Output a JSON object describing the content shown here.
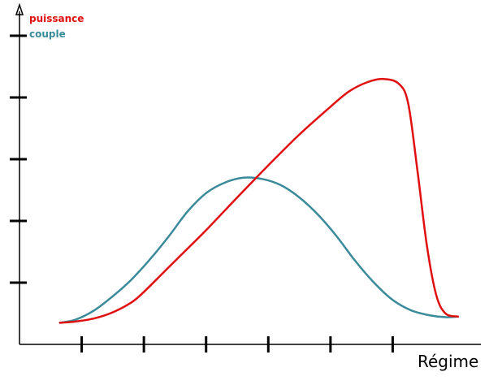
{
  "chart_data": {
    "type": "line",
    "title": "",
    "xlabel": "Régime",
    "ylabel": "",
    "xlim": [
      0,
      7
    ],
    "ylim": [
      0,
      5
    ],
    "x_ticks": [
      1,
      2,
      3,
      4,
      5,
      6
    ],
    "y_ticks": [
      1,
      2,
      3,
      4,
      5
    ],
    "tick_labels_shown": false,
    "grid": false,
    "legend_position": "top-left",
    "series": [
      {
        "name": "puissance",
        "color": "#e01010",
        "points": [
          {
            "x": 0.65,
            "y": 0.35
          },
          {
            "x": 0.9,
            "y": 0.37
          },
          {
            "x": 1.2,
            "y": 0.42
          },
          {
            "x": 1.5,
            "y": 0.52
          },
          {
            "x": 1.8,
            "y": 0.68
          },
          {
            "x": 2.0,
            "y": 0.85
          },
          {
            "x": 2.3,
            "y": 1.15
          },
          {
            "x": 2.6,
            "y": 1.45
          },
          {
            "x": 3.0,
            "y": 1.85
          },
          {
            "x": 3.5,
            "y": 2.38
          },
          {
            "x": 4.0,
            "y": 2.9
          },
          {
            "x": 4.5,
            "y": 3.4
          },
          {
            "x": 5.0,
            "y": 3.85
          },
          {
            "x": 5.3,
            "y": 4.1
          },
          {
            "x": 5.6,
            "y": 4.25
          },
          {
            "x": 5.85,
            "y": 4.3
          },
          {
            "x": 6.1,
            "y": 4.22
          },
          {
            "x": 6.25,
            "y": 3.9
          },
          {
            "x": 6.4,
            "y": 2.8
          },
          {
            "x": 6.55,
            "y": 1.6
          },
          {
            "x": 6.7,
            "y": 0.8
          },
          {
            "x": 6.85,
            "y": 0.5
          },
          {
            "x": 7.05,
            "y": 0.45
          }
        ]
      },
      {
        "name": "couple",
        "color": "#3a8a9a",
        "points": [
          {
            "x": 0.65,
            "y": 0.35
          },
          {
            "x": 0.9,
            "y": 0.4
          },
          {
            "x": 1.2,
            "y": 0.55
          },
          {
            "x": 1.5,
            "y": 0.78
          },
          {
            "x": 1.8,
            "y": 1.05
          },
          {
            "x": 2.1,
            "y": 1.38
          },
          {
            "x": 2.4,
            "y": 1.75
          },
          {
            "x": 2.7,
            "y": 2.15
          },
          {
            "x": 3.0,
            "y": 2.45
          },
          {
            "x": 3.3,
            "y": 2.62
          },
          {
            "x": 3.6,
            "y": 2.7
          },
          {
            "x": 3.9,
            "y": 2.68
          },
          {
            "x": 4.2,
            "y": 2.58
          },
          {
            "x": 4.5,
            "y": 2.38
          },
          {
            "x": 4.8,
            "y": 2.1
          },
          {
            "x": 5.1,
            "y": 1.75
          },
          {
            "x": 5.4,
            "y": 1.35
          },
          {
            "x": 5.7,
            "y": 1.0
          },
          {
            "x": 6.0,
            "y": 0.72
          },
          {
            "x": 6.3,
            "y": 0.55
          },
          {
            "x": 6.6,
            "y": 0.47
          },
          {
            "x": 6.85,
            "y": 0.44
          },
          {
            "x": 7.05,
            "y": 0.45
          }
        ]
      }
    ]
  }
}
